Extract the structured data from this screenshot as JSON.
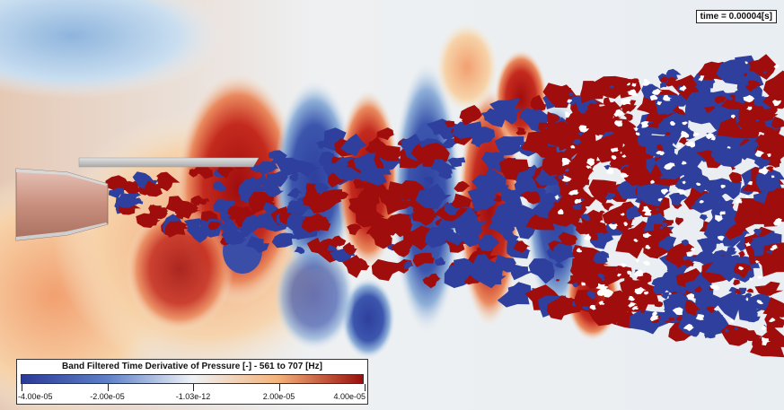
{
  "overlay": {
    "time_label": "time = 0.00004[s]"
  },
  "colorbar": {
    "title": "Band Filtered Time Derivative of Pressure [-] - 561 to 707 [Hz]",
    "tick_labels": [
      "-4.00e-05",
      "-2.00e-05",
      "-1.03e-12",
      "2.00e-05",
      "4.00e-05"
    ],
    "tick_fractions": [
      0.0,
      0.25,
      0.5,
      0.75,
      1.0
    ],
    "colors": [
      "#2b3a98",
      "#5d7fc6",
      "#eef2f6",
      "#f4b27a",
      "#990f0b"
    ]
  },
  "scene": {
    "colors": {
      "deep_red": "#a00d0d",
      "red": "#d6402d",
      "orange": "#f2a070",
      "pale": "#f5ecd8",
      "light_blue": "#b8d4e8",
      "blue": "#2e3f9e",
      "nozzle": "#d9a89a",
      "plate": "#c8c8c8"
    }
  }
}
